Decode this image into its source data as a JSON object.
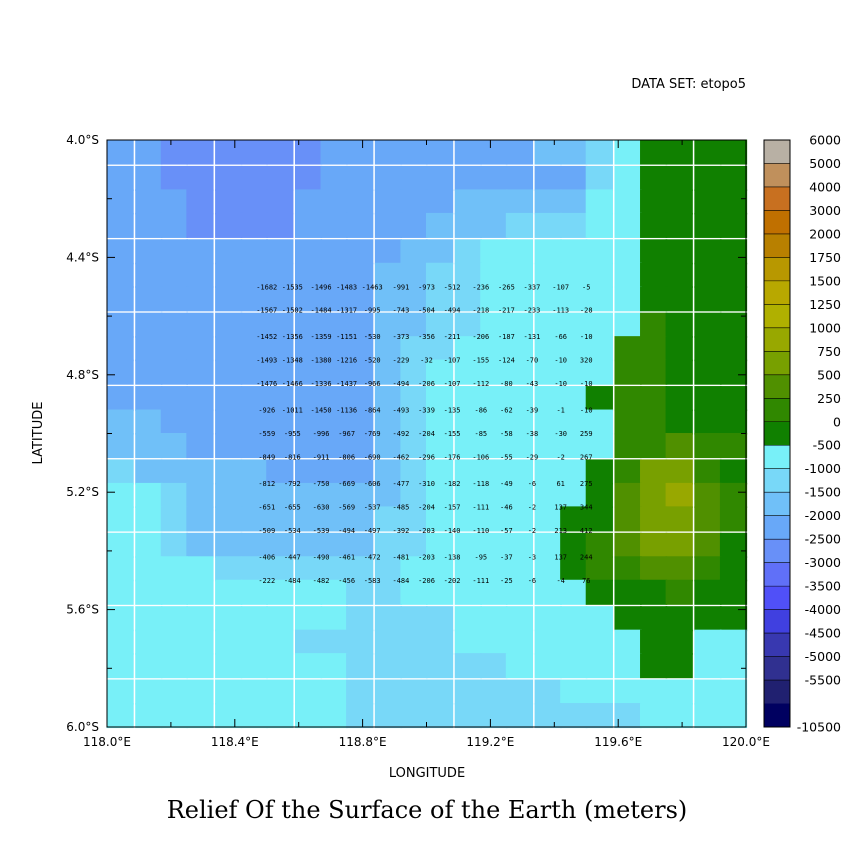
{
  "chart_data": {
    "type": "heatmap",
    "title": "Relief Of the Surface of the Earth (meters)",
    "dataset_label": "DATA SET: etopo5",
    "xlabel": "LONGITUDE",
    "ylabel": "LATITUDE",
    "xlim": [
      118.0,
      120.0
    ],
    "ylim": [
      -6.0,
      -4.0
    ],
    "x_ticks": [
      "118.0°E",
      "118.4°E",
      "118.8°E",
      "119.2°E",
      "119.6°E",
      "120.0°E"
    ],
    "y_ticks": [
      "4.0°S",
      "4.4°S",
      "4.8°S",
      "5.2°S",
      "5.6°S",
      "6.0°S"
    ],
    "colorbar_labels": [
      "6000",
      "5000",
      "4000",
      "3000",
      "2000",
      "1750",
      "1500",
      "1250",
      "1000",
      "750",
      "500",
      "250",
      "0",
      "-500",
      "-1000",
      "-1500",
      "-2000",
      "-2500",
      "-3000",
      "-3500",
      "-4000",
      "-4500",
      "-5000",
      "-5500",
      "-10500"
    ],
    "colorbar_colors": [
      "#b8b0a4",
      "#c0905c",
      "#c87020",
      "#c07000",
      "#b88000",
      "#b89800",
      "#b8a800",
      "#b0b000",
      "#98a800",
      "#78a000",
      "#509000",
      "#308800",
      "#108000",
      "#78f0f8",
      "#78d8f8",
      "#70c0f8",
      "#68a8f8",
      "#6890f8",
      "#6070f8",
      "#5050f8",
      "#4040e0",
      "#3838b0",
      "#303090",
      "#202070",
      "#000060"
    ],
    "grid_lon": [
      118.04,
      118.13,
      118.21,
      118.29,
      118.38,
      118.46,
      118.54,
      118.63,
      118.71,
      118.79,
      118.88,
      118.96,
      119.04,
      119.13,
      119.21,
      119.29,
      119.38,
      119.46,
      119.54,
      119.63,
      119.71,
      119.79,
      119.88,
      119.96
    ],
    "grid_lat": [
      -4.04,
      -4.13,
      -4.21,
      -4.29,
      -4.38,
      -4.46,
      -4.54,
      -4.63,
      -4.71,
      -4.79,
      -4.88,
      -4.96,
      -5.04,
      -5.13,
      -5.21,
      -5.29,
      -5.38,
      -5.46,
      -5.54,
      -5.63,
      -5.71,
      -5.79,
      -5.88,
      -5.96
    ],
    "label_lon": [
      118.5,
      118.58,
      118.67,
      118.75,
      118.83,
      118.92,
      119.0,
      119.08,
      119.17,
      119.25,
      119.33,
      119.42,
      119.5
    ],
    "label_lat": [
      -4.5,
      -4.58,
      -4.67,
      -4.75,
      -4.83,
      -4.92,
      -5.0,
      -5.08,
      -5.17,
      -5.25,
      -5.33,
      -5.42,
      -5.5
    ],
    "label_values": [
      [
        -1682,
        -1535,
        -1496,
        -1483,
        -1463,
        -991,
        -973,
        -512,
        -236,
        -265,
        -337,
        -107,
        -5
      ],
      [
        -1567,
        -1502,
        -1484,
        -1317,
        -995,
        -743,
        -504,
        -494,
        -218,
        -217,
        -233,
        -113,
        -28
      ],
      [
        -1452,
        -1356,
        -1359,
        -1151,
        -530,
        -373,
        -356,
        -211,
        -206,
        -187,
        -131,
        -66,
        -10
      ],
      [
        -1493,
        -1348,
        -1380,
        -1216,
        -520,
        -229,
        -32,
        -107,
        -155,
        -124,
        -70,
        -10,
        320
      ],
      [
        -1476,
        -1466,
        -1336,
        -1437,
        -966,
        -494,
        -206,
        -107,
        -112,
        -80,
        -43,
        -10,
        -10
      ],
      [
        -926,
        -1011,
        -1450,
        -1136,
        -864,
        -493,
        -339,
        -135,
        -86,
        -62,
        -39,
        -1,
        -10
      ],
      [
        -559,
        -955,
        -996,
        -967,
        -769,
        -492,
        -204,
        -155,
        -85,
        -58,
        -38,
        -30,
        259
      ],
      [
        -849,
        -816,
        -911,
        -806,
        -690,
        -462,
        -296,
        -176,
        -106,
        -55,
        -29,
        -2,
        267
      ],
      [
        -812,
        -792,
        -750,
        -669,
        -606,
        -477,
        -310,
        -182,
        -118,
        -49,
        -6,
        61,
        275
      ],
      [
        -651,
        -655,
        -630,
        -569,
        -537,
        -485,
        -204,
        -157,
        -111,
        -46,
        -2,
        137,
        344
      ],
      [
        -509,
        -534,
        -539,
        -494,
        -497,
        -392,
        -203,
        -140,
        -110,
        -57,
        -2,
        213,
        412
      ],
      [
        -406,
        -447,
        -490,
        -461,
        -472,
        -481,
        -203,
        -138,
        -95,
        -37,
        -3,
        137,
        244
      ],
      [
        -222,
        -484,
        -482,
        -456,
        -583,
        -484,
        -206,
        -202,
        -111,
        -25,
        -6,
        -4,
        76
      ]
    ],
    "grid_values": [
      [
        -1700,
        -1700,
        -2100,
        -2100,
        -2100,
        -2100,
        -2100,
        -2100,
        -1700,
        -1700,
        -1700,
        -1700,
        -1700,
        -1700,
        -1700,
        -1700,
        -1200,
        -1200,
        -700,
        -200,
        60,
        60,
        60,
        60
      ],
      [
        -1700,
        -1700,
        -2100,
        -2100,
        -2100,
        -2100,
        -2100,
        -2100,
        -1700,
        -1700,
        -1700,
        -1700,
        -1700,
        -1700,
        -1700,
        -1700,
        -1700,
        -1700,
        -700,
        -200,
        60,
        60,
        60,
        60
      ],
      [
        -1700,
        -1700,
        -1700,
        -2100,
        -2100,
        -2100,
        -2100,
        -1700,
        -1700,
        -1700,
        -1700,
        -1700,
        -1700,
        -1200,
        -1200,
        -1200,
        -1200,
        -1200,
        -200,
        -200,
        60,
        160,
        60,
        60
      ],
      [
        -1700,
        -1700,
        -1700,
        -2100,
        -2100,
        -2100,
        -2100,
        -1700,
        -1700,
        -1700,
        -1700,
        -1700,
        -1200,
        -1200,
        -1200,
        -700,
        -700,
        -700,
        -200,
        -200,
        60,
        160,
        60,
        60
      ],
      [
        -1700,
        -1700,
        -1700,
        -1700,
        -1700,
        -1700,
        -1700,
        -1700,
        -1700,
        -1700,
        -1700,
        -1200,
        -1200,
        -700,
        -200,
        -200,
        -200,
        -200,
        -200,
        -200,
        60,
        160,
        60,
        60
      ],
      [
        -1700,
        -1700,
        -1700,
        -1700,
        -1700,
        -1700,
        -1700,
        -1700,
        -1700,
        -1700,
        -1200,
        -1200,
        -700,
        -700,
        -200,
        -200,
        -200,
        -200,
        -200,
        -200,
        60,
        160,
        60,
        60
      ],
      [
        -1700,
        -1700,
        -1700,
        -1700,
        -1700,
        -1700,
        -1700,
        -1700,
        -1700,
        -1700,
        -1200,
        -1200,
        -700,
        -700,
        -200,
        -200,
        -200,
        -200,
        -200,
        -200,
        60,
        160,
        160,
        60
      ],
      [
        -1700,
        -1700,
        -1700,
        -1700,
        -1700,
        -1700,
        -1700,
        -1700,
        -1700,
        -1700,
        -1200,
        -1200,
        -700,
        -700,
        -200,
        -200,
        -200,
        -200,
        -200,
        -200,
        380,
        160,
        160,
        60
      ],
      [
        -1700,
        -1700,
        -1700,
        -1700,
        -1700,
        -1700,
        -1700,
        -1700,
        -1700,
        -1700,
        -1200,
        -700,
        -700,
        -200,
        -200,
        -200,
        -200,
        -200,
        -200,
        380,
        380,
        160,
        160,
        60
      ],
      [
        -1700,
        -1700,
        -1700,
        -1700,
        -1700,
        -1700,
        -1700,
        -1700,
        -1700,
        -1700,
        -1200,
        -700,
        -200,
        -200,
        -200,
        -200,
        -200,
        -200,
        -200,
        380,
        380,
        160,
        160,
        60
      ],
      [
        -1700,
        -1700,
        -1700,
        -1700,
        -1700,
        -1700,
        -1700,
        -1700,
        -1700,
        -1700,
        -1200,
        -700,
        -200,
        -200,
        -200,
        -200,
        -200,
        -200,
        160,
        380,
        380,
        160,
        160,
        60
      ],
      [
        -1200,
        -1200,
        -1700,
        -1700,
        -1700,
        -1700,
        -1700,
        -1700,
        -1700,
        -1700,
        -1200,
        -700,
        -200,
        -200,
        -200,
        -200,
        -200,
        -200,
        -200,
        380,
        380,
        160,
        160,
        60
      ],
      [
        -1200,
        -1200,
        -1200,
        -1700,
        -1700,
        -1700,
        -1700,
        -1700,
        -1700,
        -1700,
        -1200,
        -700,
        -200,
        -200,
        -200,
        -200,
        -200,
        -200,
        -200,
        380,
        380,
        620,
        380,
        380
      ],
      [
        -700,
        -1200,
        -1200,
        -1200,
        -1200,
        -1200,
        -1700,
        -1700,
        -1700,
        -1700,
        -1200,
        -700,
        -200,
        -200,
        -200,
        -200,
        -200,
        -200,
        160,
        380,
        870,
        870,
        380,
        160
      ],
      [
        -200,
        -200,
        -700,
        -1200,
        -1200,
        -1200,
        -1200,
        -1200,
        -1200,
        -1200,
        -1200,
        -700,
        -200,
        -200,
        -200,
        -200,
        -200,
        -200,
        160,
        620,
        870,
        1120,
        620,
        380
      ],
      [
        -200,
        -200,
        -700,
        -1200,
        -1200,
        -1200,
        -1200,
        -1200,
        -1200,
        -1200,
        -700,
        -700,
        -200,
        -200,
        -200,
        -200,
        -200,
        160,
        160,
        620,
        870,
        870,
        620,
        380
      ],
      [
        -200,
        -200,
        -700,
        -1200,
        -1200,
        -1200,
        -1200,
        -1200,
        -1200,
        -1200,
        -700,
        -700,
        -200,
        -200,
        -200,
        -200,
        -200,
        160,
        380,
        620,
        870,
        870,
        620,
        160
      ],
      [
        -200,
        -200,
        -200,
        -200,
        -700,
        -700,
        -700,
        -700,
        -700,
        -700,
        -700,
        -200,
        -200,
        -200,
        -200,
        -200,
        -200,
        160,
        380,
        380,
        620,
        620,
        380,
        160
      ],
      [
        -200,
        -200,
        -200,
        -200,
        -200,
        -200,
        -200,
        -200,
        -200,
        -700,
        -700,
        -200,
        -200,
        -200,
        -200,
        -200,
        -200,
        -200,
        160,
        160,
        160,
        380,
        160,
        160
      ],
      [
        -200,
        -200,
        -200,
        -200,
        -200,
        -200,
        -200,
        -200,
        -200,
        -700,
        -700,
        -700,
        -700,
        -200,
        -200,
        -200,
        -200,
        -200,
        -200,
        160,
        160,
        160,
        160,
        160
      ],
      [
        -200,
        -200,
        -200,
        -200,
        -200,
        -200,
        -200,
        -700,
        -700,
        -700,
        -700,
        -700,
        -700,
        -200,
        -200,
        -200,
        -200,
        -200,
        -200,
        -200,
        160,
        160,
        -200,
        -200
      ],
      [
        -200,
        -200,
        -200,
        -200,
        -200,
        -200,
        -200,
        -200,
        -200,
        -700,
        -700,
        -700,
        -700,
        -700,
        -700,
        -200,
        -200,
        -200,
        -200,
        -200,
        160,
        160,
        -200,
        -200
      ],
      [
        -200,
        -200,
        -200,
        -200,
        -200,
        -200,
        -200,
        -200,
        -200,
        -700,
        -700,
        -700,
        -700,
        -700,
        -700,
        -700,
        -700,
        -200,
        -200,
        -200,
        -200,
        -200,
        -200,
        -200
      ],
      [
        -200,
        -200,
        -200,
        -200,
        -200,
        -200,
        -200,
        -200,
        -200,
        -700,
        -700,
        -700,
        -700,
        -700,
        -700,
        -700,
        -700,
        -700,
        -700,
        -700,
        -200,
        -200,
        -200,
        -200
      ]
    ]
  }
}
